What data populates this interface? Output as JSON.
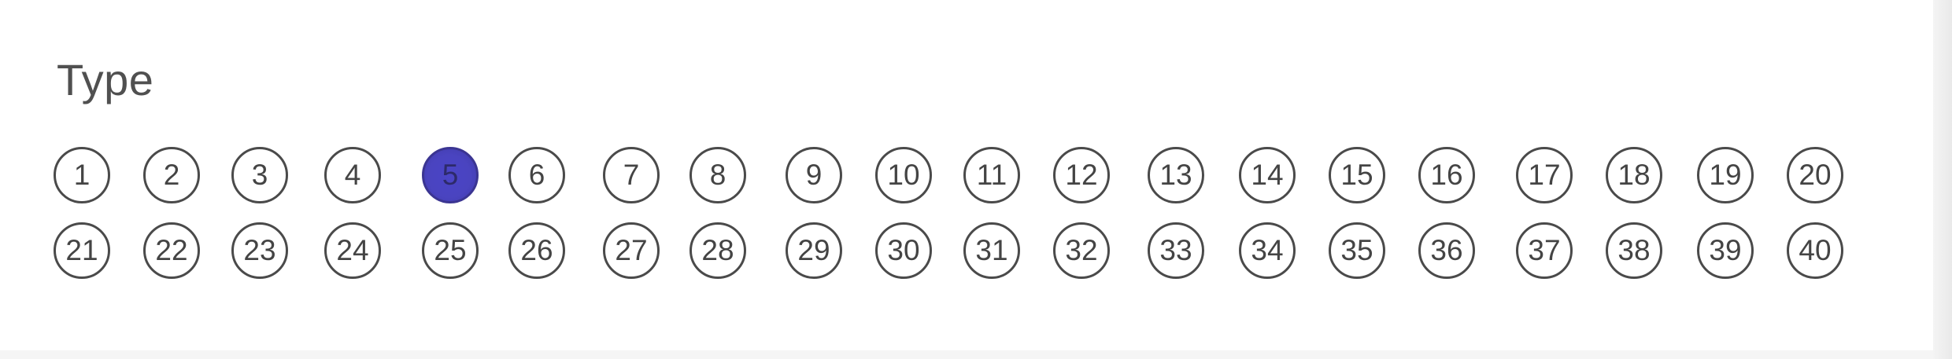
{
  "section": {
    "title": "Type"
  },
  "selected": "5",
  "rows": [
    [
      "1",
      "2",
      "3",
      "4",
      "5",
      "6",
      "7",
      "8",
      "9",
      "10",
      "11",
      "12",
      "13",
      "14",
      "15",
      "16",
      "17",
      "18",
      "19",
      "20"
    ],
    [
      "21",
      "22",
      "23",
      "24",
      "25",
      "26",
      "27",
      "28",
      "29",
      "30",
      "31",
      "32",
      "33",
      "34",
      "35",
      "36",
      "37",
      "38",
      "39",
      "40"
    ]
  ],
  "colors": {
    "ink": "#4a4a4a",
    "fill": "#4a44c0"
  }
}
